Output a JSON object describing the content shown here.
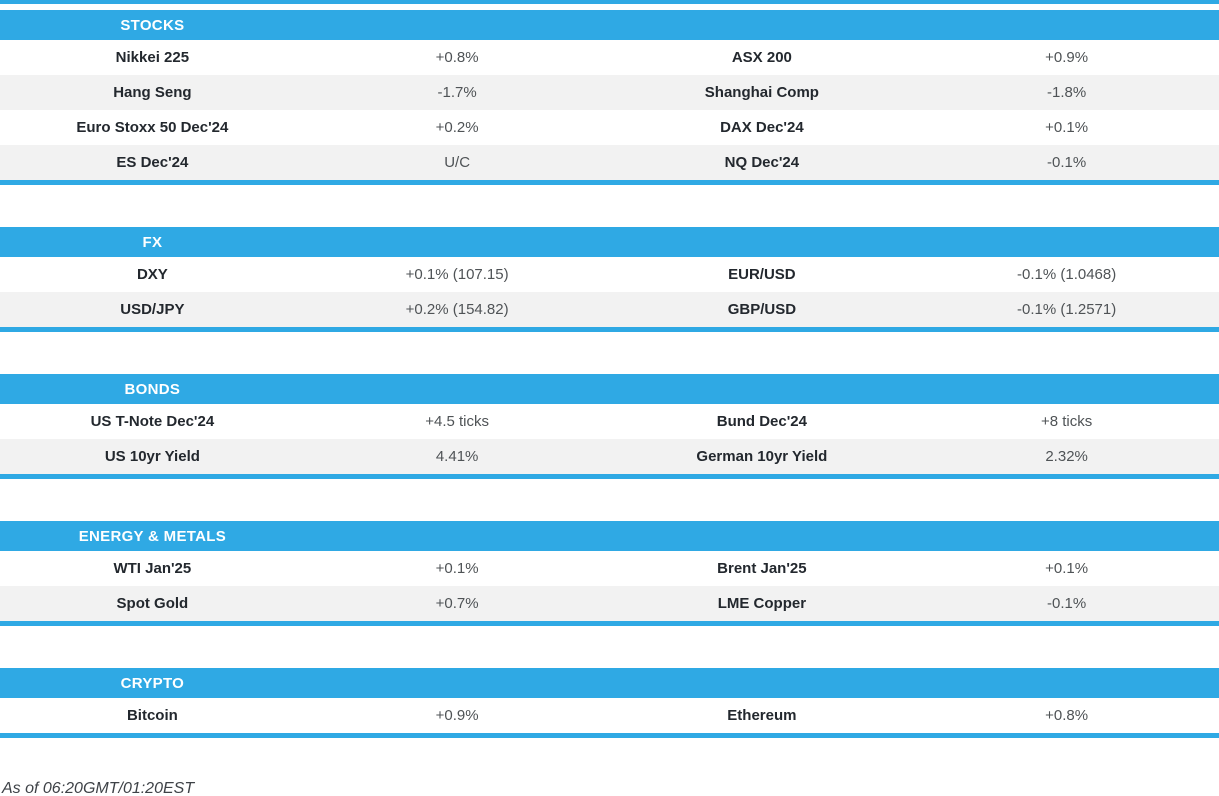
{
  "colors": {
    "accent": "#2FA9E4",
    "alt_row": "#F2F2F2",
    "header_text": "#FFFFFF",
    "name_text": "#23282E",
    "value_text": "#4F5356"
  },
  "sections": [
    {
      "title": "STOCKS",
      "rows": [
        [
          "Nikkei 225",
          "+0.8%",
          "ASX 200",
          "+0.9%"
        ],
        [
          "Hang Seng",
          "-1.7%",
          "Shanghai Comp",
          "-1.8%"
        ],
        [
          "Euro Stoxx 50 Dec'24",
          "+0.2%",
          "DAX Dec'24",
          "+0.1%"
        ],
        [
          "ES Dec'24",
          "U/C",
          "NQ Dec'24",
          "-0.1%"
        ]
      ]
    },
    {
      "title": "FX",
      "rows": [
        [
          "DXY",
          "+0.1% (107.15)",
          "EUR/USD",
          "-0.1% (1.0468)"
        ],
        [
          "USD/JPY",
          "+0.2% (154.82)",
          "GBP/USD",
          "-0.1% (1.2571)"
        ]
      ]
    },
    {
      "title": "BONDS",
      "rows": [
        [
          "US T-Note Dec'24",
          "+4.5 ticks",
          "Bund Dec'24",
          "+8 ticks"
        ],
        [
          "US 10yr Yield",
          "4.41%",
          "German 10yr Yield",
          "2.32%"
        ]
      ]
    },
    {
      "title": "ENERGY & METALS",
      "rows": [
        [
          "WTI Jan'25",
          "+0.1%",
          "Brent Jan'25",
          "+0.1%"
        ],
        [
          "Spot Gold",
          "+0.7%",
          "LME Copper",
          "-0.1%"
        ]
      ]
    },
    {
      "title": "CRYPTO",
      "rows": [
        [
          "Bitcoin",
          "+0.9%",
          "Ethereum",
          "+0.8%"
        ]
      ]
    }
  ],
  "footer": {
    "as_of": "As of 06:20GMT/01:20EST"
  }
}
